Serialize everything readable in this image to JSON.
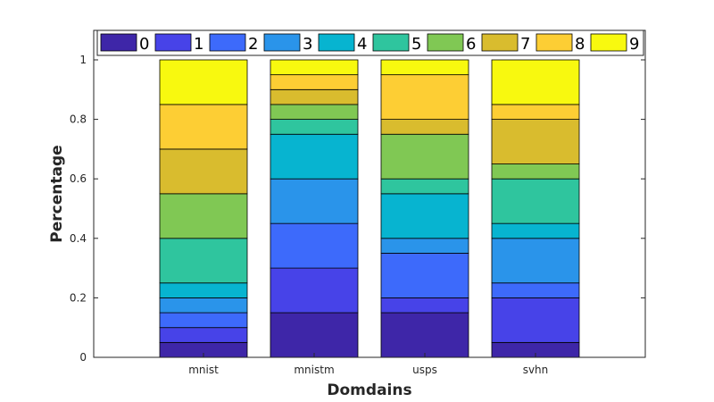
{
  "chart_data": {
    "type": "bar",
    "stacked": true,
    "categories": [
      "mnist",
      "mnistm",
      "usps",
      "svhn"
    ],
    "xlabel": "Domdains",
    "ylabel": "Percentage",
    "ylim": [
      0,
      1
    ],
    "yticks": [
      "0",
      "0.2",
      "0.4",
      "0.6",
      "0.8",
      "1"
    ],
    "grid": false,
    "legend": {
      "placement": "top",
      "orientation": "horizontal"
    },
    "series": [
      {
        "name": "0",
        "color": "#3e26a8",
        "values": [
          0.05,
          0.15,
          0.15,
          0.05
        ]
      },
      {
        "name": "1",
        "color": "#4743e8",
        "values": [
          0.05,
          0.15,
          0.05,
          0.15
        ]
      },
      {
        "name": "2",
        "color": "#3d6afb",
        "values": [
          0.05,
          0.15,
          0.15,
          0.05
        ]
      },
      {
        "name": "3",
        "color": "#2a94ea",
        "values": [
          0.05,
          0.15,
          0.05,
          0.15
        ]
      },
      {
        "name": "4",
        "color": "#07b4d0",
        "values": [
          0.05,
          0.15,
          0.15,
          0.05
        ]
      },
      {
        "name": "5",
        "color": "#2fc59e",
        "values": [
          0.15,
          0.05,
          0.05,
          0.15
        ]
      },
      {
        "name": "6",
        "color": "#80c854",
        "values": [
          0.15,
          0.05,
          0.15,
          0.05
        ]
      },
      {
        "name": "7",
        "color": "#d9bc2e",
        "values": [
          0.15,
          0.05,
          0.05,
          0.15
        ]
      },
      {
        "name": "8",
        "color": "#fdce34",
        "values": [
          0.15,
          0.05,
          0.15,
          0.05
        ]
      },
      {
        "name": "9",
        "color": "#f8f90f",
        "values": [
          0.15,
          0.05,
          0.05,
          0.15
        ]
      }
    ]
  }
}
